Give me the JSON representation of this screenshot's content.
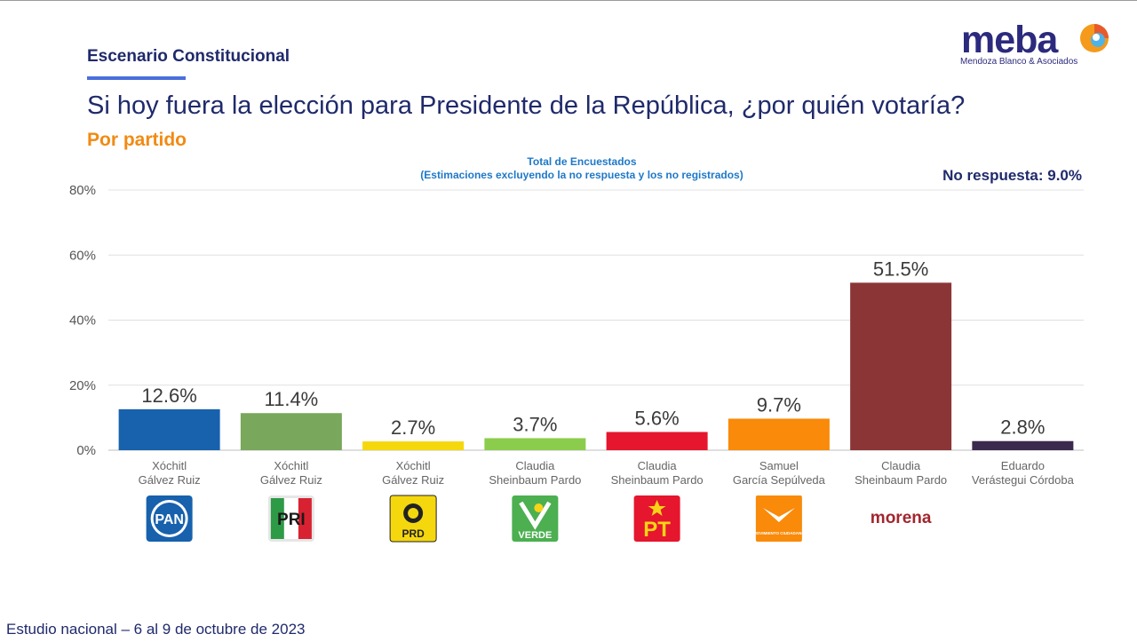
{
  "header": {
    "scenario": "Escenario Constitucional",
    "question": "Si hoy fuera la elección para Presidente de la República, ¿por quién votaría?",
    "subtitle": "Por partido"
  },
  "logo": {
    "word": "meba",
    "subtitle": "Mendoza Blanco & Asociados",
    "icon": "meba-logo-icon"
  },
  "chart_caption": {
    "line1": "Total de Encuestados",
    "line2": "(Estimaciones excluyendo la no respuesta y los no registrados)"
  },
  "no_response": "No respuesta: 9.0%",
  "footer": "Estudio nacional – 6 al 9 de octubre de 2023",
  "chart_data": {
    "type": "bar",
    "ylim": [
      0,
      80
    ],
    "yticks": [
      "0%",
      "20%",
      "40%",
      "60%",
      "80%"
    ],
    "ytick_values": [
      0,
      20,
      40,
      60,
      80
    ],
    "grid": true,
    "categories": [
      {
        "line1": "Xóchitl",
        "line2": "Gálvez Ruiz",
        "party": "PAN"
      },
      {
        "line1": "Xóchitl",
        "line2": "Gálvez Ruiz",
        "party": "PRI"
      },
      {
        "line1": "Xóchitl",
        "line2": "Gálvez Ruiz",
        "party": "PRD"
      },
      {
        "line1": "Claudia",
        "line2": "Sheinbaum Pardo",
        "party": "VERDE"
      },
      {
        "line1": "Claudia",
        "line2": "Sheinbaum Pardo",
        "party": "PT"
      },
      {
        "line1": "Samuel",
        "line2": "García Sepúlveda",
        "party": "MOVIMIENTO CIUDADANO"
      },
      {
        "line1": "Claudia",
        "line2": "Sheinbaum Pardo",
        "party": "morena"
      },
      {
        "line1": "Eduardo",
        "line2": "Verástegui Córdoba",
        "party": ""
      }
    ],
    "values": [
      12.6,
      11.4,
      2.7,
      3.7,
      5.6,
      9.7,
      51.5,
      2.8
    ],
    "labels": [
      "12.6%",
      "11.4%",
      "2.7%",
      "3.7%",
      "5.6%",
      "9.7%",
      "51.5%",
      "2.8%"
    ],
    "colors": [
      "#1761ad",
      "#79a75c",
      "#f5d70e",
      "#8ccc4d",
      "#e5162d",
      "#f98a0a",
      "#8b3536",
      "#3b2a4e"
    ]
  }
}
